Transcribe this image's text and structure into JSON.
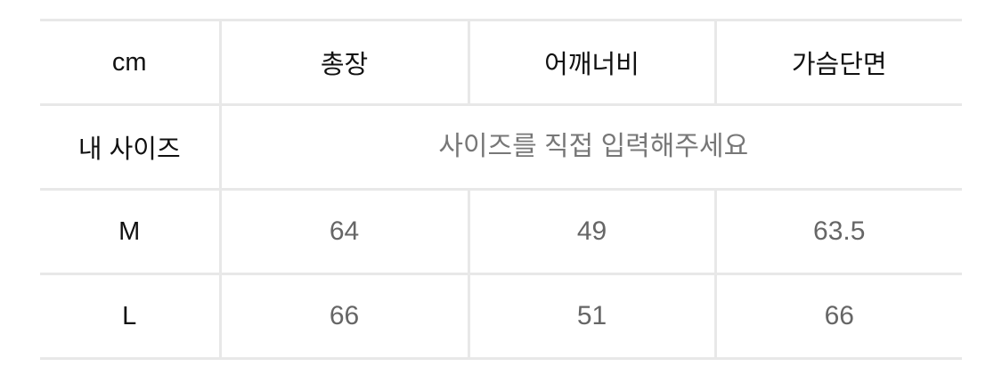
{
  "table": {
    "unit": "cm",
    "columns": [
      "총장",
      "어깨너비",
      "가슴단면"
    ],
    "my_size": {
      "label": "내 사이즈",
      "placeholder": "사이즈를 직접 입력해주세요"
    },
    "rows": [
      {
        "size": "M",
        "values": [
          "64",
          "49",
          "63.5"
        ]
      },
      {
        "size": "L",
        "values": [
          "66",
          "51",
          "66"
        ]
      }
    ]
  }
}
